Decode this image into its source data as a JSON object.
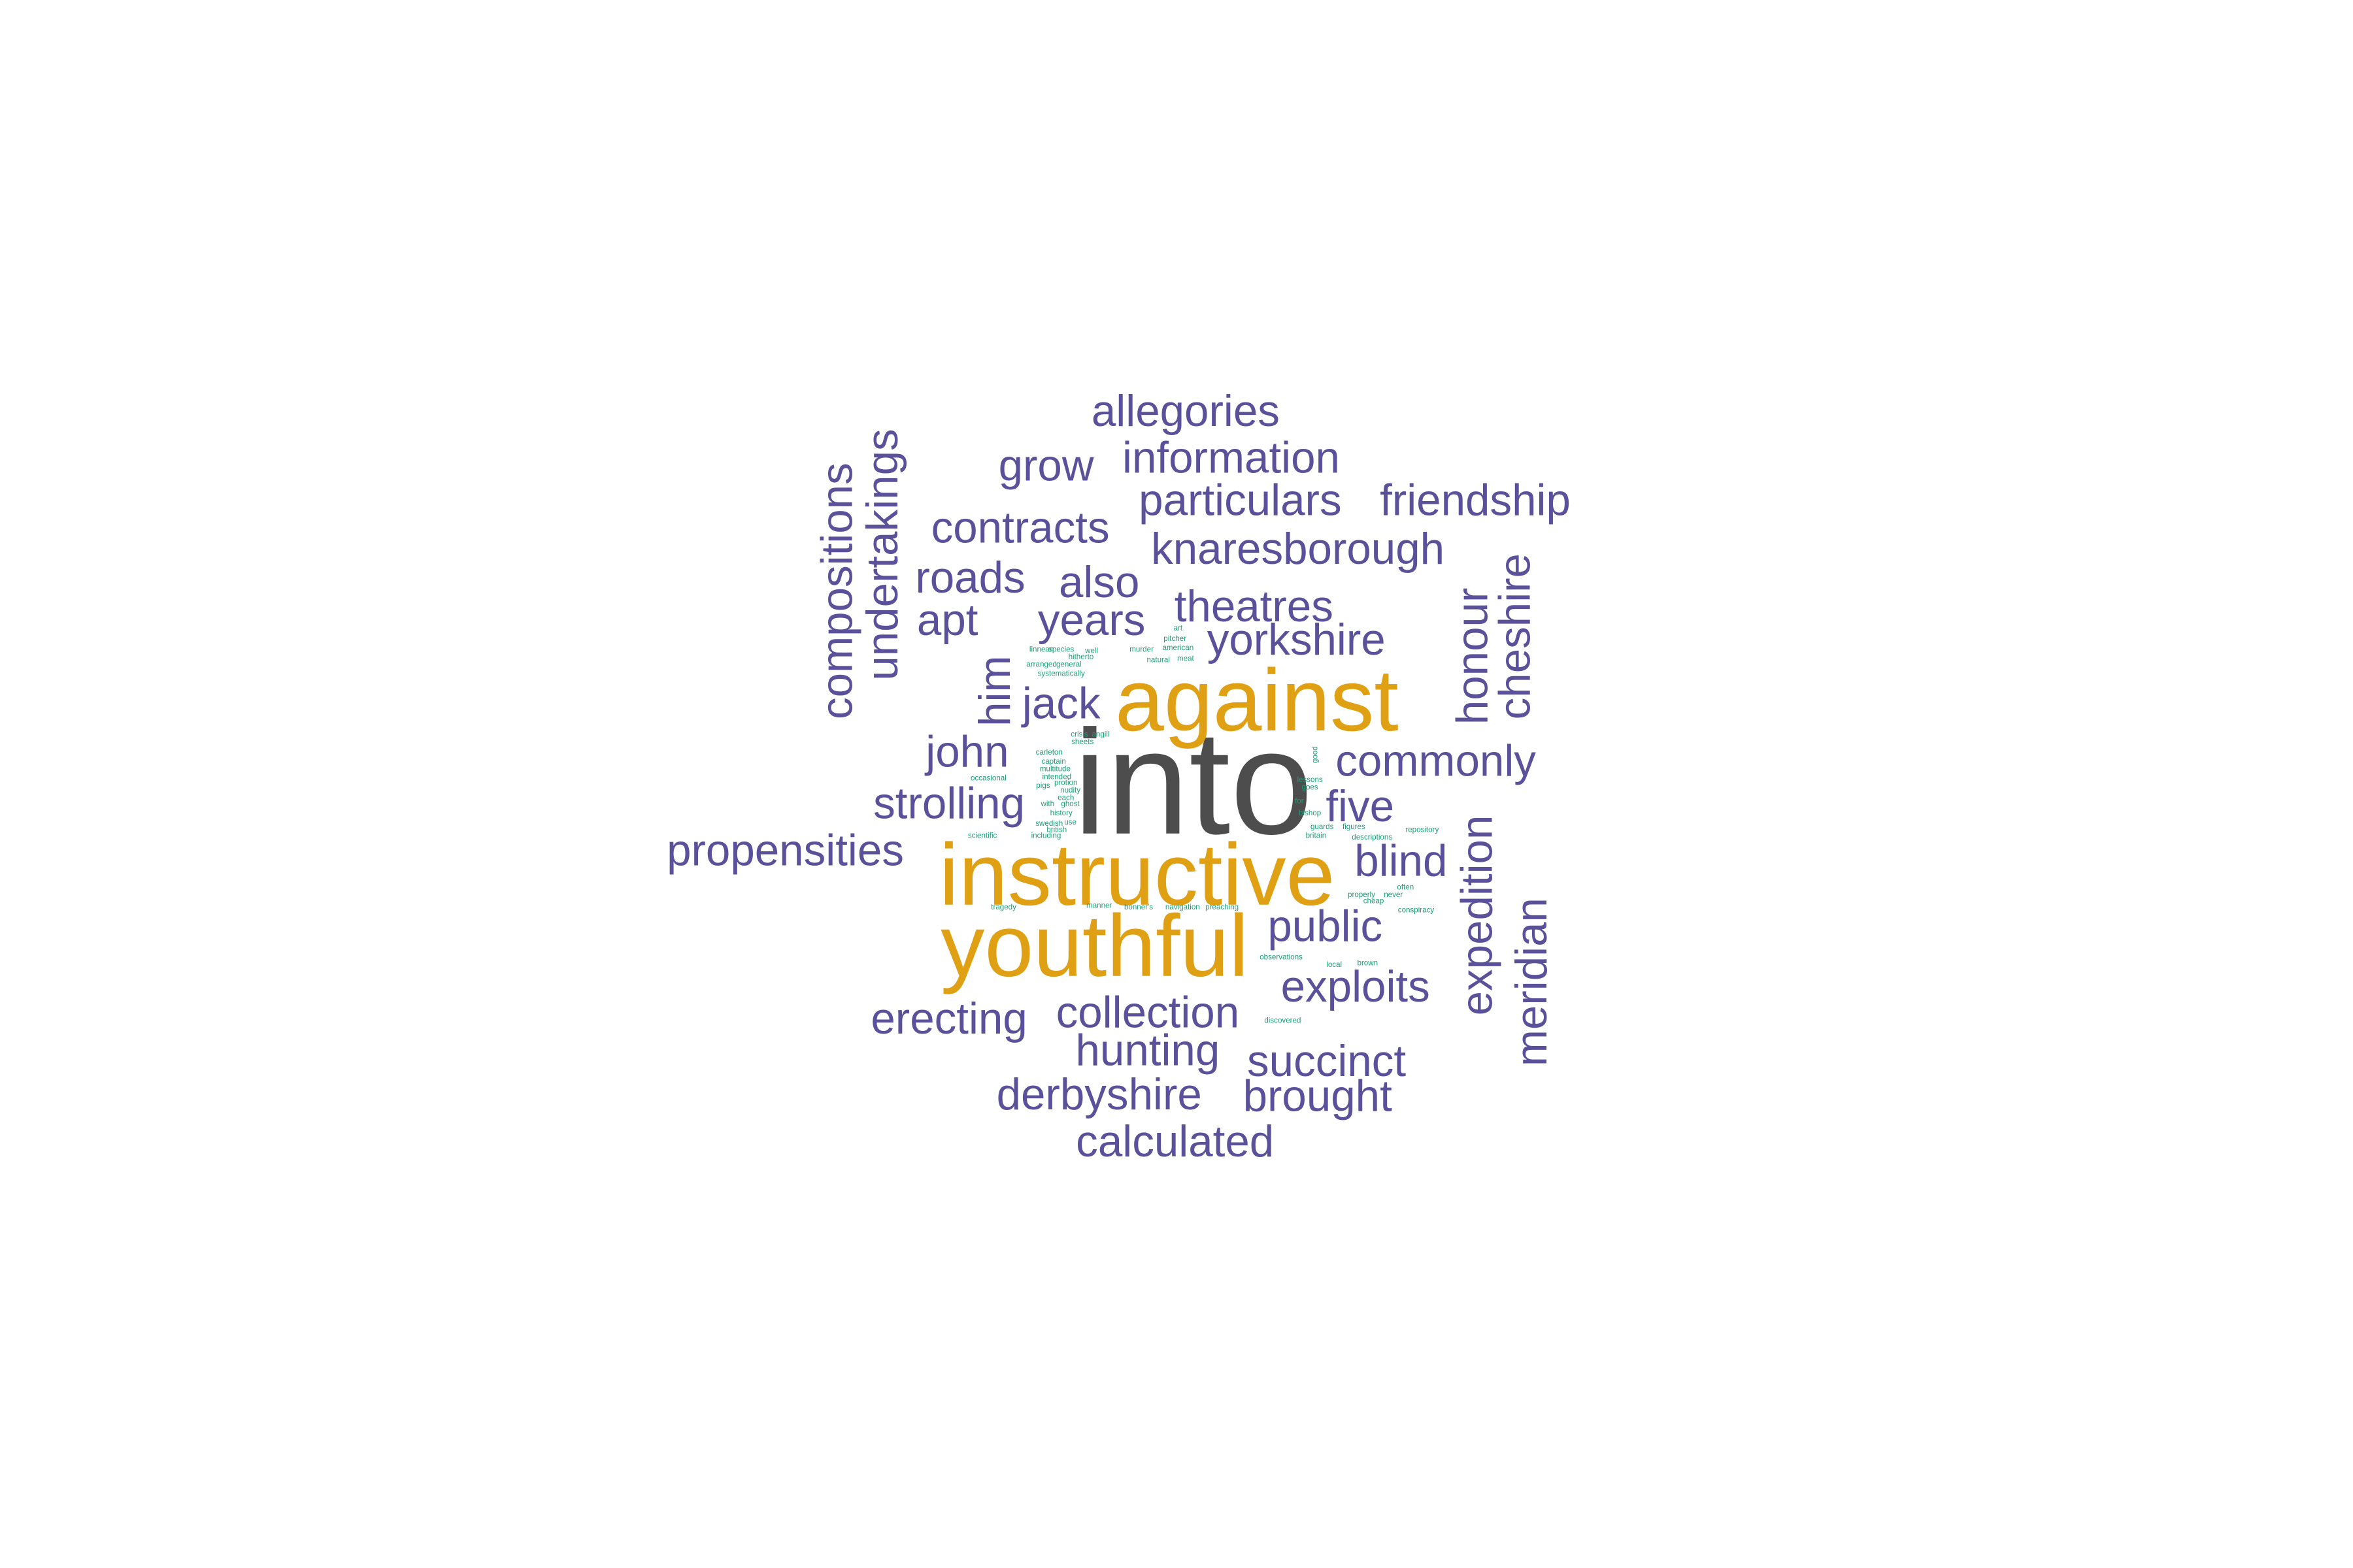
{
  "colors": {
    "dark": "#4d4d4d",
    "orange": "#e0a014",
    "purple": "#5b519b",
    "green": "#1b9e77"
  },
  "words": [
    {
      "text": "into",
      "tier": "dark"
    },
    {
      "text": "against",
      "tier": "orange"
    },
    {
      "text": "instructive",
      "tier": "orange"
    },
    {
      "text": "youthful",
      "tier": "orange"
    },
    {
      "text": "allegories",
      "tier": "purple"
    },
    {
      "text": "information",
      "tier": "purple"
    },
    {
      "text": "grow",
      "tier": "purple"
    },
    {
      "text": "particulars",
      "tier": "purple"
    },
    {
      "text": "friendship",
      "tier": "purple"
    },
    {
      "text": "contracts",
      "tier": "purple"
    },
    {
      "text": "knaresborough",
      "tier": "purple"
    },
    {
      "text": "roads",
      "tier": "purple"
    },
    {
      "text": "also",
      "tier": "purple"
    },
    {
      "text": "theatres",
      "tier": "purple"
    },
    {
      "text": "apt",
      "tier": "purple"
    },
    {
      "text": "years",
      "tier": "purple"
    },
    {
      "text": "yorkshire",
      "tier": "purple"
    },
    {
      "text": "jack",
      "tier": "purple"
    },
    {
      "text": "john",
      "tier": "purple"
    },
    {
      "text": "commonly",
      "tier": "purple"
    },
    {
      "text": "strolling",
      "tier": "purple"
    },
    {
      "text": "five",
      "tier": "purple"
    },
    {
      "text": "propensities",
      "tier": "purple"
    },
    {
      "text": "blind",
      "tier": "purple"
    },
    {
      "text": "public",
      "tier": "purple"
    },
    {
      "text": "exploits",
      "tier": "purple"
    },
    {
      "text": "erecting",
      "tier": "purple"
    },
    {
      "text": "collection",
      "tier": "purple"
    },
    {
      "text": "hunting",
      "tier": "purple"
    },
    {
      "text": "succinct",
      "tier": "purple"
    },
    {
      "text": "derbyshire",
      "tier": "purple"
    },
    {
      "text": "brought",
      "tier": "purple"
    },
    {
      "text": "calculated",
      "tier": "purple"
    },
    {
      "text": "compositions",
      "tier": "purple"
    },
    {
      "text": "undertakings",
      "tier": "purple"
    },
    {
      "text": "him",
      "tier": "purple"
    },
    {
      "text": "honour",
      "tier": "purple"
    },
    {
      "text": "cheshire",
      "tier": "purple"
    },
    {
      "text": "expedition",
      "tier": "purple"
    },
    {
      "text": "meridian",
      "tier": "purple"
    },
    {
      "text": "linnean",
      "tier": "green"
    },
    {
      "text": "species",
      "tier": "green"
    },
    {
      "text": "well",
      "tier": "green"
    },
    {
      "text": "hitherto",
      "tier": "green"
    },
    {
      "text": "murder",
      "tier": "green"
    },
    {
      "text": "american",
      "tier": "green"
    },
    {
      "text": "natural",
      "tier": "green"
    },
    {
      "text": "meat",
      "tier": "green"
    },
    {
      "text": "pitcher",
      "tier": "green"
    },
    {
      "text": "art",
      "tier": "green"
    },
    {
      "text": "arranged",
      "tier": "green"
    },
    {
      "text": "general",
      "tier": "green"
    },
    {
      "text": "systematically",
      "tier": "green"
    },
    {
      "text": "crisis",
      "tier": "green"
    },
    {
      "text": "angill",
      "tier": "green"
    },
    {
      "text": "sheets",
      "tier": "green"
    },
    {
      "text": "carleton",
      "tier": "green"
    },
    {
      "text": "captain",
      "tier": "green"
    },
    {
      "text": "multitude",
      "tier": "green"
    },
    {
      "text": "intended",
      "tier": "green"
    },
    {
      "text": "occasional",
      "tier": "green"
    },
    {
      "text": "protion",
      "tier": "green"
    },
    {
      "text": "pigs",
      "tier": "green"
    },
    {
      "text": "nudity",
      "tier": "green"
    },
    {
      "text": "each",
      "tier": "green"
    },
    {
      "text": "with",
      "tier": "green"
    },
    {
      "text": "ghost",
      "tier": "green"
    },
    {
      "text": "history",
      "tier": "green"
    },
    {
      "text": "swedish",
      "tier": "green"
    },
    {
      "text": "use",
      "tier": "green"
    },
    {
      "text": "british",
      "tier": "green"
    },
    {
      "text": "scientific",
      "tier": "green"
    },
    {
      "text": "including",
      "tier": "green"
    },
    {
      "text": "lessons",
      "tier": "green"
    },
    {
      "text": "goes",
      "tier": "green"
    },
    {
      "text": "for",
      "tier": "green"
    },
    {
      "text": "bishop",
      "tier": "green"
    },
    {
      "text": "guards",
      "tier": "green"
    },
    {
      "text": "figures",
      "tier": "green"
    },
    {
      "text": "britain",
      "tier": "green"
    },
    {
      "text": "descriptions",
      "tier": "green"
    },
    {
      "text": "repository",
      "tier": "green"
    },
    {
      "text": "often",
      "tier": "green"
    },
    {
      "text": "properly",
      "tier": "green"
    },
    {
      "text": "never",
      "tier": "green"
    },
    {
      "text": "cheap",
      "tier": "green"
    },
    {
      "text": "conspiracy",
      "tier": "green"
    },
    {
      "text": "tragedy",
      "tier": "green"
    },
    {
      "text": "manner",
      "tier": "green"
    },
    {
      "text": "bonner's",
      "tier": "green"
    },
    {
      "text": "navigation",
      "tier": "green"
    },
    {
      "text": "preaching",
      "tier": "green"
    },
    {
      "text": "observations",
      "tier": "green"
    },
    {
      "text": "local",
      "tier": "green"
    },
    {
      "text": "brown",
      "tier": "green"
    },
    {
      "text": "discovered",
      "tier": "green"
    },
    {
      "text": "good",
      "tier": "green"
    }
  ]
}
